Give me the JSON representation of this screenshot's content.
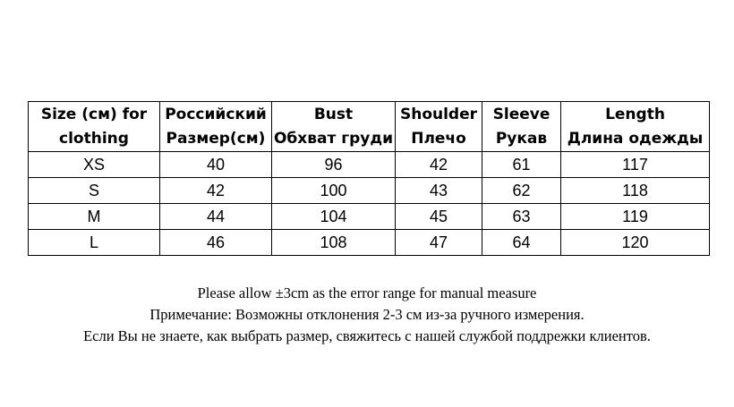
{
  "table": {
    "headers": [
      {
        "line1": "Size (см) for",
        "line2": "clothing"
      },
      {
        "line1": "Российский",
        "line2": "Размер(см)"
      },
      {
        "line1": "Bust",
        "line2": "Обхват груди"
      },
      {
        "line1": "Shoulder",
        "line2": "Плечо"
      },
      {
        "line1": "Sleeve",
        "line2": "Рукав"
      },
      {
        "line1": "Length",
        "line2": "Длина одежды"
      }
    ],
    "rows": [
      [
        "XS",
        "40",
        "96",
        "42",
        "61",
        "117"
      ],
      [
        "S",
        "42",
        "100",
        "43",
        "62",
        "118"
      ],
      [
        "M",
        "44",
        "104",
        "45",
        "63",
        "119"
      ],
      [
        "L",
        "46",
        "108",
        "47",
        "64",
        "120"
      ]
    ]
  },
  "notes": [
    "Please allow ±3cm as the error range for manual measure",
    "Примечание: Возможны отклонения 2-3 см из-за ручного измерения.",
    "Если Вы не знаете, как выбрать размер, свяжитесь с нашей службой поддрежки клиентов."
  ]
}
